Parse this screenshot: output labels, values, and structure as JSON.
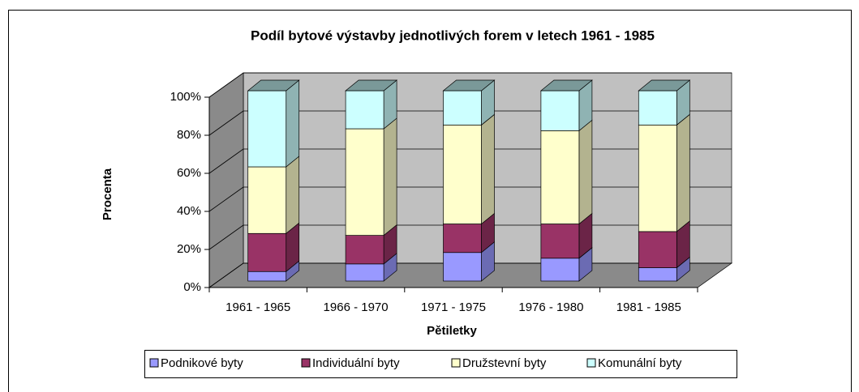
{
  "chart_data": {
    "type": "bar",
    "stacked": true,
    "title": "Podíl bytové výstavby jednotlivých forem v letech 1961 - 1985",
    "y_label": "Procenta",
    "x_label": "Pětiletky",
    "categories": [
      "1961 - 1965",
      "1966 - 1970",
      "1971 - 1975",
      "1976 - 1980",
      "1981 - 1985"
    ],
    "series": [
      {
        "name": "Podnikové byty",
        "color": "#9999ff",
        "values": [
          5,
          9,
          15,
          12,
          7
        ]
      },
      {
        "name": "Individuální byty",
        "color": "#993366",
        "values": [
          20,
          15,
          15,
          18,
          19
        ]
      },
      {
        "name": "Družstevní byty",
        "color": "#ffffcc",
        "values": [
          35,
          56,
          52,
          49,
          56
        ]
      },
      {
        "name": "Komunální byty",
        "color": "#ccffff",
        "values": [
          40,
          20,
          18,
          21,
          18
        ]
      }
    ],
    "ylim": [
      0,
      100
    ],
    "yticks": [
      {
        "value": 0,
        "label": "0%"
      },
      {
        "value": 20,
        "label": "20%"
      },
      {
        "value": 40,
        "label": "40%"
      },
      {
        "value": 60,
        "label": "60%"
      },
      {
        "value": 80,
        "label": "80%"
      },
      {
        "value": 100,
        "label": "100%"
      }
    ],
    "grid": true,
    "legend": "bottom"
  }
}
